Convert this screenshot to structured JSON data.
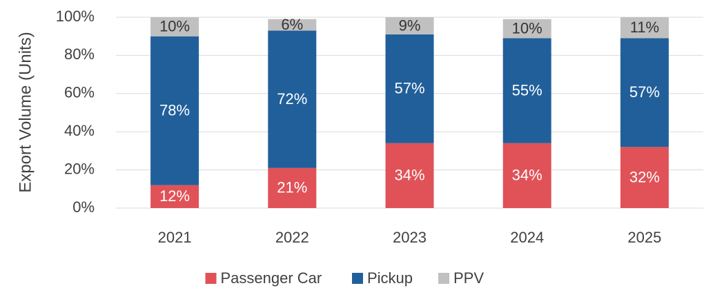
{
  "chart_data": {
    "type": "stacked_bar",
    "y_label": "Export Volume (Units)",
    "categories": [
      "2021",
      "2022",
      "2023",
      "2024",
      "2025"
    ],
    "series": [
      {
        "name": "Passenger Car",
        "color": "#e05257",
        "label_color": "#ffffff",
        "values": [
          12,
          21,
          34,
          34,
          32
        ],
        "value_labels": [
          "12%",
          "21%",
          "34%",
          "34%",
          "32%"
        ]
      },
      {
        "name": "Pickup",
        "color": "#215f9a",
        "label_color": "#ffffff",
        "values": [
          78,
          72,
          57,
          55,
          57
        ],
        "value_labels": [
          "78%",
          "72%",
          "57%",
          "55%",
          "57%"
        ]
      },
      {
        "name": "PPV",
        "color": "#c0c0c0",
        "label_color": "#333333",
        "values": [
          10,
          6,
          9,
          10,
          11
        ],
        "value_labels": [
          "10%",
          "6%",
          "9%",
          "10%",
          "11%"
        ]
      }
    ],
    "ylim": [
      0,
      100
    ],
    "yticks": [
      {
        "value": 0,
        "label": "0%"
      },
      {
        "value": 20,
        "label": "20%"
      },
      {
        "value": 40,
        "label": "40%"
      },
      {
        "value": 60,
        "label": "60%"
      },
      {
        "value": 80,
        "label": "80%"
      },
      {
        "value": 100,
        "label": "100%"
      }
    ],
    "grid": true,
    "legend": "bottom"
  }
}
